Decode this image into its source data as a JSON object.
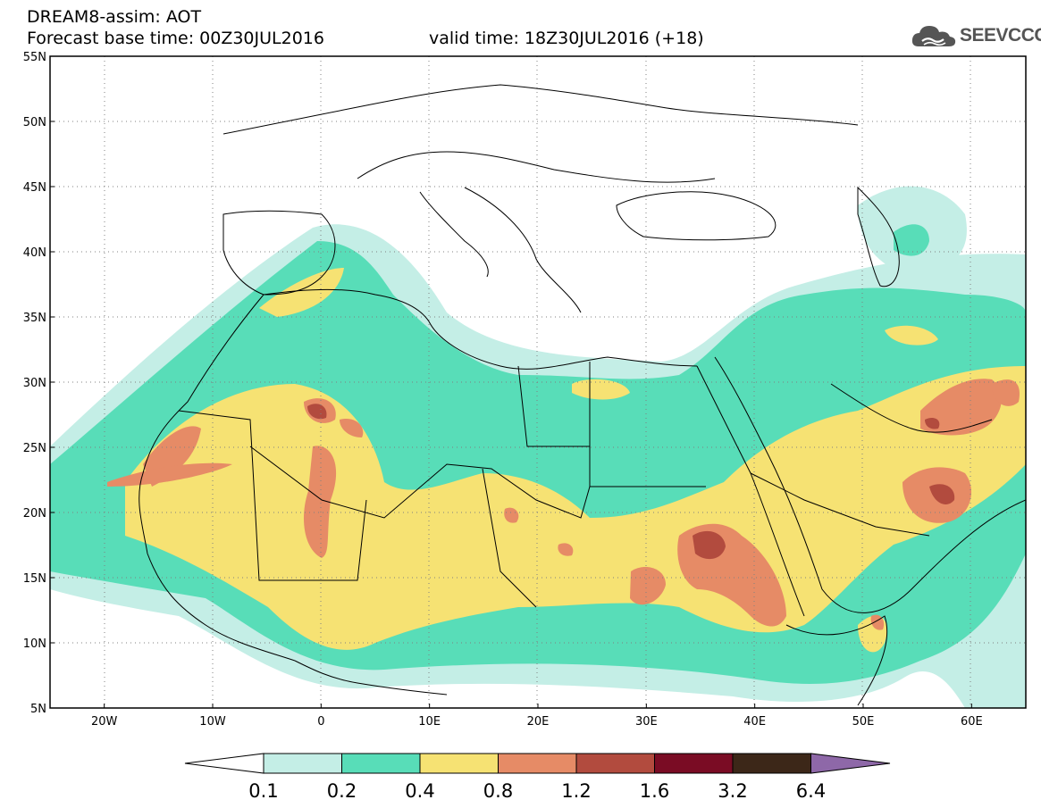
{
  "header": {
    "model_title": "DREAM8-assim: AOT",
    "base_time": "Forecast base time: 00Z30JUL2016",
    "valid_time": "valid time: 18Z30JUL2016 (+18)"
  },
  "logo": {
    "text": "SEEVCCC",
    "icon": "cloud-icon"
  },
  "map": {
    "lon_range": [
      -25,
      65
    ],
    "lat_range": [
      5,
      55
    ],
    "lat_ticks": [
      {
        "value": 55,
        "label": "55N"
      },
      {
        "value": 50,
        "label": "50N"
      },
      {
        "value": 45,
        "label": "45N"
      },
      {
        "value": 40,
        "label": "40N"
      },
      {
        "value": 35,
        "label": "35N"
      },
      {
        "value": 30,
        "label": "30N"
      },
      {
        "value": 25,
        "label": "25N"
      },
      {
        "value": 20,
        "label": "20N"
      },
      {
        "value": 15,
        "label": "15N"
      },
      {
        "value": 10,
        "label": "10N"
      },
      {
        "value": 5,
        "label": "5N"
      }
    ],
    "lon_ticks": [
      {
        "value": -20,
        "label": "20W"
      },
      {
        "value": -10,
        "label": "10W"
      },
      {
        "value": 0,
        "label": "0"
      },
      {
        "value": 10,
        "label": "10E"
      },
      {
        "value": 20,
        "label": "20E"
      },
      {
        "value": 30,
        "label": "30E"
      },
      {
        "value": 40,
        "label": "40E"
      },
      {
        "value": 50,
        "label": "50E"
      },
      {
        "value": 60,
        "label": "60E"
      }
    ],
    "grid": true
  },
  "colorbar": {
    "levels": [
      "0.1",
      "0.2",
      "0.4",
      "0.8",
      "1.2",
      "1.6",
      "3.2",
      "6.4"
    ],
    "below_color": "#ffffff",
    "colors": [
      "#c4eee6",
      "#58ddb8",
      "#f6e273",
      "#e68b66",
      "#b24b3e",
      "#7a0c24",
      "#3c2718"
    ],
    "above_color": "#8e68a8"
  }
}
